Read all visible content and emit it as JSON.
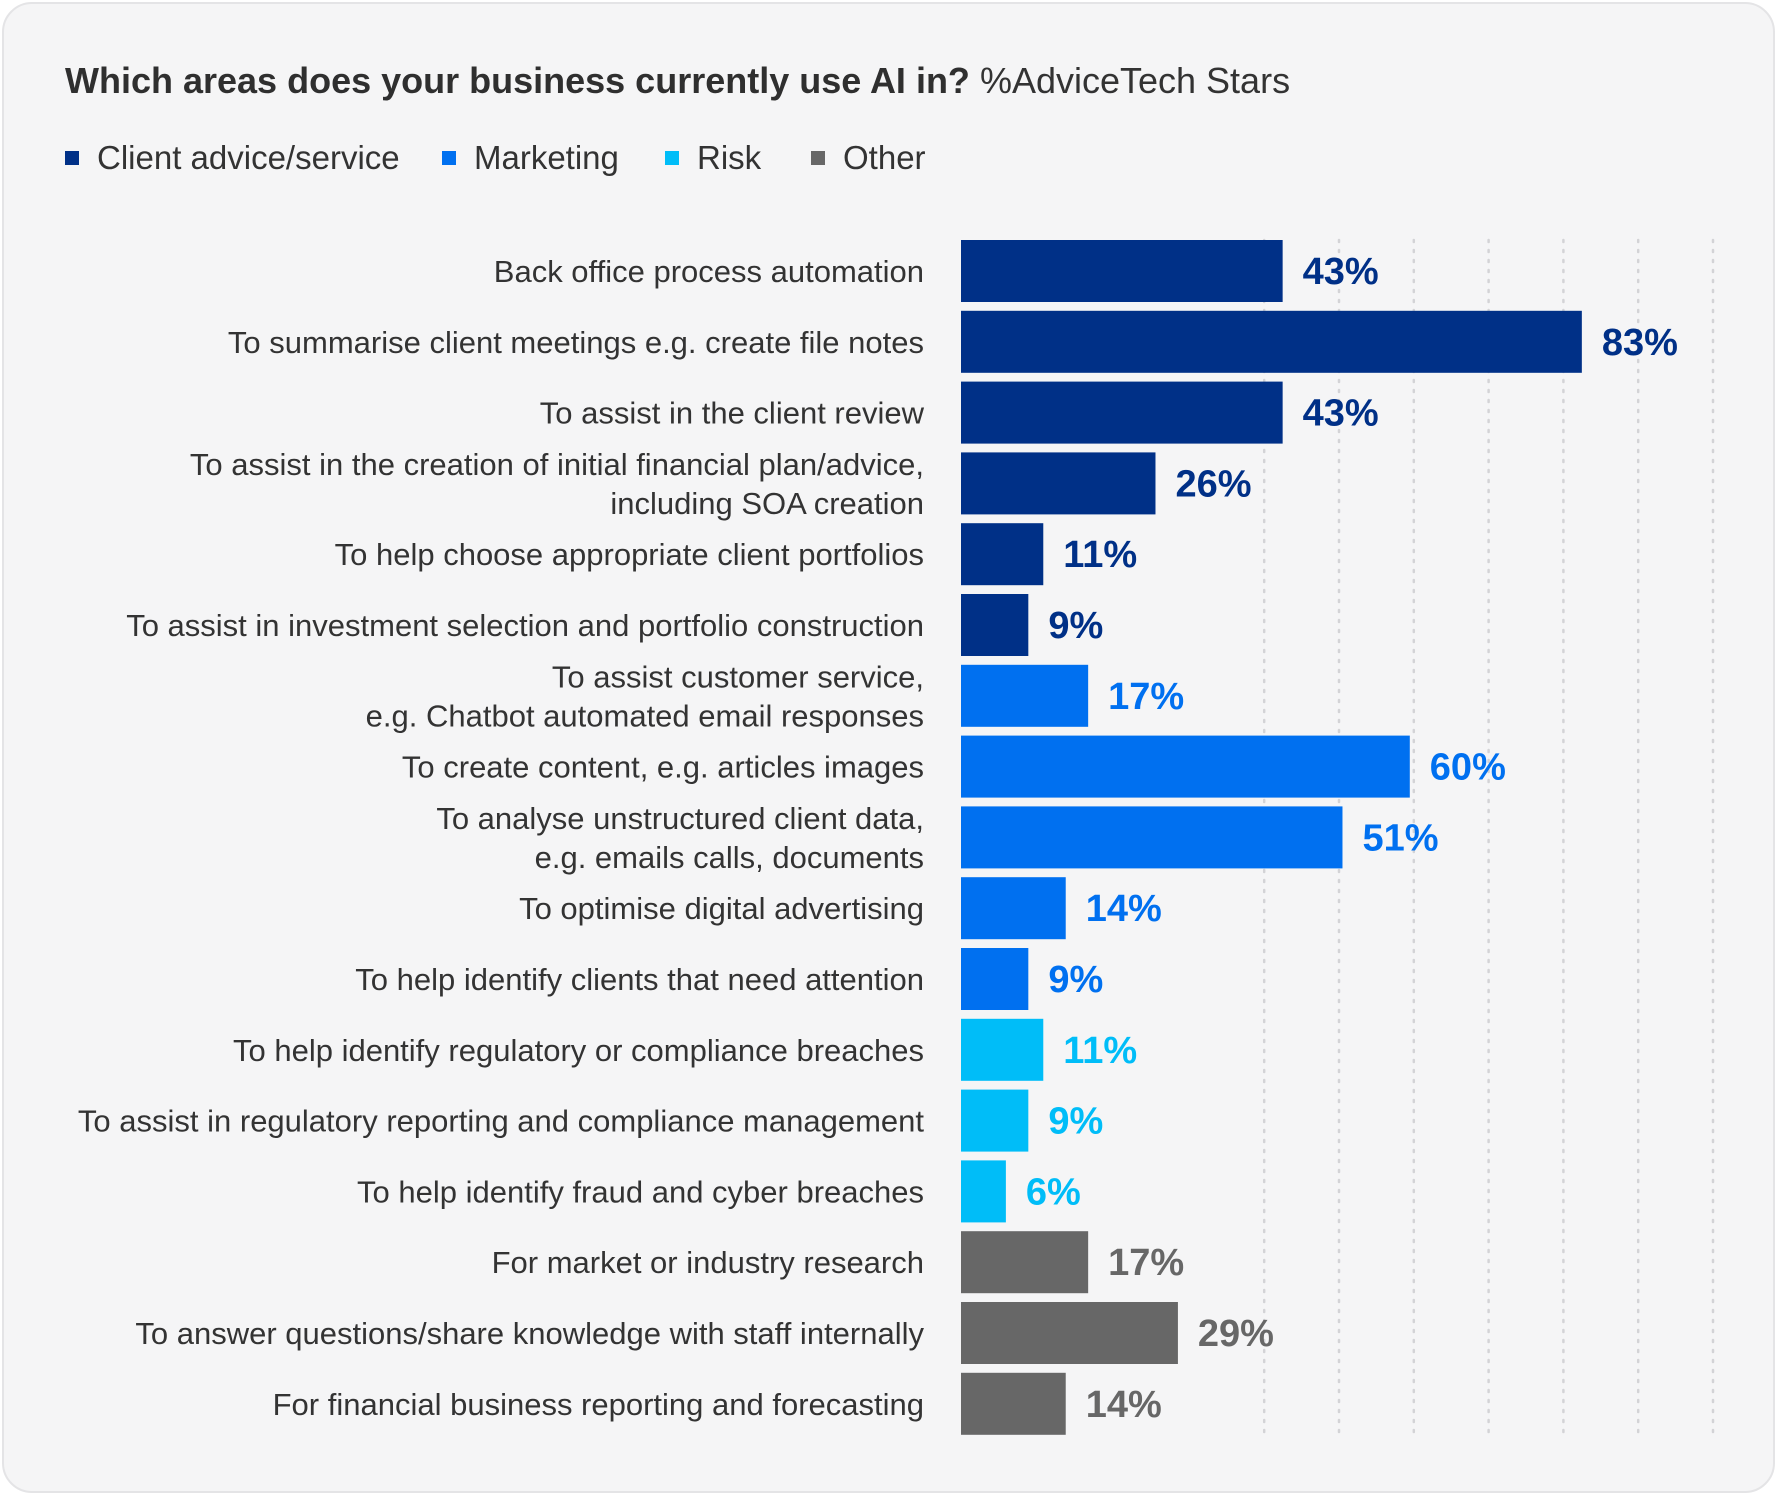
{
  "title": {
    "main": "Which areas does your business currently use AI in?",
    "sub": "%AdviceTech Stars"
  },
  "legend": [
    {
      "label": "Client advice/service",
      "color": "#003087"
    },
    {
      "label": "Marketing",
      "color": "#0070f0"
    },
    {
      "label": "Risk",
      "color": "#00bdf8"
    },
    {
      "label": "Other",
      "color": "#676767"
    }
  ],
  "chart_data": {
    "type": "bar",
    "orientation": "horizontal",
    "xlim": [
      0,
      100
    ],
    "grid": "vertical dotted",
    "value_suffix": "%",
    "categories": [
      {
        "label": [
          "Back office process automation"
        ],
        "value": 43,
        "group": "Client advice/service"
      },
      {
        "label": [
          "To summarise client meetings e.g. create file notes"
        ],
        "value": 83,
        "group": "Client advice/service"
      },
      {
        "label": [
          "To assist in the client review"
        ],
        "value": 43,
        "group": "Client advice/service"
      },
      {
        "label": [
          "To assist in the creation of initial financial plan/advice,",
          "including SOA creation"
        ],
        "value": 26,
        "group": "Client advice/service"
      },
      {
        "label": [
          "To help choose appropriate client portfolios"
        ],
        "value": 11,
        "group": "Client advice/service"
      },
      {
        "label": [
          "To assist in investment selection and portfolio construction"
        ],
        "value": 9,
        "group": "Client advice/service"
      },
      {
        "label": [
          "To assist customer service,",
          "e.g. Chatbot automated email responses"
        ],
        "value": 17,
        "group": "Marketing"
      },
      {
        "label": [
          "To create content, e.g. articles images"
        ],
        "value": 60,
        "group": "Marketing"
      },
      {
        "label": [
          "To analyse unstructured client data,",
          "e.g. emails calls, documents"
        ],
        "value": 51,
        "group": "Marketing"
      },
      {
        "label": [
          "To optimise digital advertising"
        ],
        "value": 14,
        "group": "Marketing"
      },
      {
        "label": [
          "To help identify clients that need attention"
        ],
        "value": 9,
        "group": "Marketing"
      },
      {
        "label": [
          "To help identify regulatory or compliance breaches"
        ],
        "value": 11,
        "group": "Risk"
      },
      {
        "label": [
          "To assist in regulatory reporting and compliance management"
        ],
        "value": 9,
        "group": "Risk"
      },
      {
        "label": [
          "To help identify fraud and cyber breaches"
        ],
        "value": 6,
        "group": "Risk"
      },
      {
        "label": [
          "For market or industry research"
        ],
        "value": 17,
        "group": "Other"
      },
      {
        "label": [
          "To answer questions/share knowledge with staff internally"
        ],
        "value": 29,
        "group": "Other"
      },
      {
        "label": [
          "For financial business reporting and forecasting"
        ],
        "value": 14,
        "group": "Other"
      }
    ]
  }
}
